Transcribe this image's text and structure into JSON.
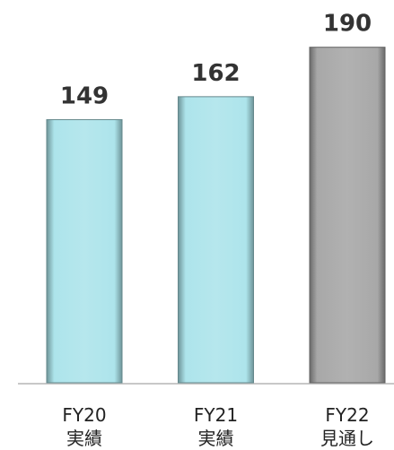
{
  "chart_data": {
    "type": "bar",
    "categories": [
      [
        "FY20",
        "実績"
      ],
      [
        "FY21",
        "実績"
      ],
      [
        "FY22",
        "見通し"
      ]
    ],
    "values": [
      149,
      162,
      190
    ],
    "colors": [
      "#a9e3ea",
      "#a9e3ea",
      "#a3a3a3"
    ],
    "ylim": [
      0,
      200
    ]
  }
}
